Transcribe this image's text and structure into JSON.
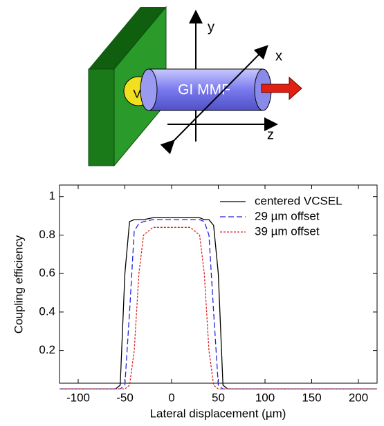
{
  "diagram": {
    "y_axis": "y",
    "x_axis": "x",
    "z_axis": "z",
    "source": "V",
    "fiber": "GI MMF"
  },
  "chart_data": {
    "type": "line",
    "xlabel": "Lateral displacement (µm)",
    "ylabel": "Coupling efficiency",
    "x": [
      -120,
      -60,
      -55,
      -50,
      -45,
      -40,
      -35,
      -30,
      -20,
      -10,
      0,
      10,
      20,
      30,
      35,
      40,
      45,
      50,
      55,
      60,
      220
    ],
    "series": [
      {
        "name": "centered VCSEL",
        "color": "#000000",
        "dash": "none",
        "values": [
          0,
          0,
          0.02,
          0.6,
          0.87,
          0.88,
          0.88,
          0.88,
          0.89,
          0.89,
          0.89,
          0.89,
          0.89,
          0.89,
          0.88,
          0.88,
          0.85,
          0.6,
          0.02,
          0,
          0
        ]
      },
      {
        "name": "29 µm offset",
        "color": "#2222dd",
        "dash": "8 4",
        "values": [
          0,
          0,
          0,
          0.02,
          0.4,
          0.82,
          0.86,
          0.87,
          0.88,
          0.88,
          0.88,
          0.88,
          0.88,
          0.88,
          0.87,
          0.8,
          0.4,
          0.02,
          0,
          0,
          0
        ]
      },
      {
        "name": "39 µm offset",
        "color": "#dd2222",
        "dash": "3 2",
        "values": [
          0,
          0,
          0,
          0,
          0.02,
          0.2,
          0.6,
          0.8,
          0.84,
          0.84,
          0.84,
          0.84,
          0.84,
          0.8,
          0.6,
          0.2,
          0.02,
          0,
          0,
          0,
          0
        ]
      }
    ],
    "xlim": [
      -120,
      220
    ],
    "ylim": [
      0.03,
      1.06
    ],
    "xticks": [
      -100,
      -50,
      0,
      50,
      100,
      150,
      200
    ],
    "yticks": [
      0.2,
      0.4,
      0.6,
      0.8,
      1
    ],
    "legend": "upper right"
  }
}
